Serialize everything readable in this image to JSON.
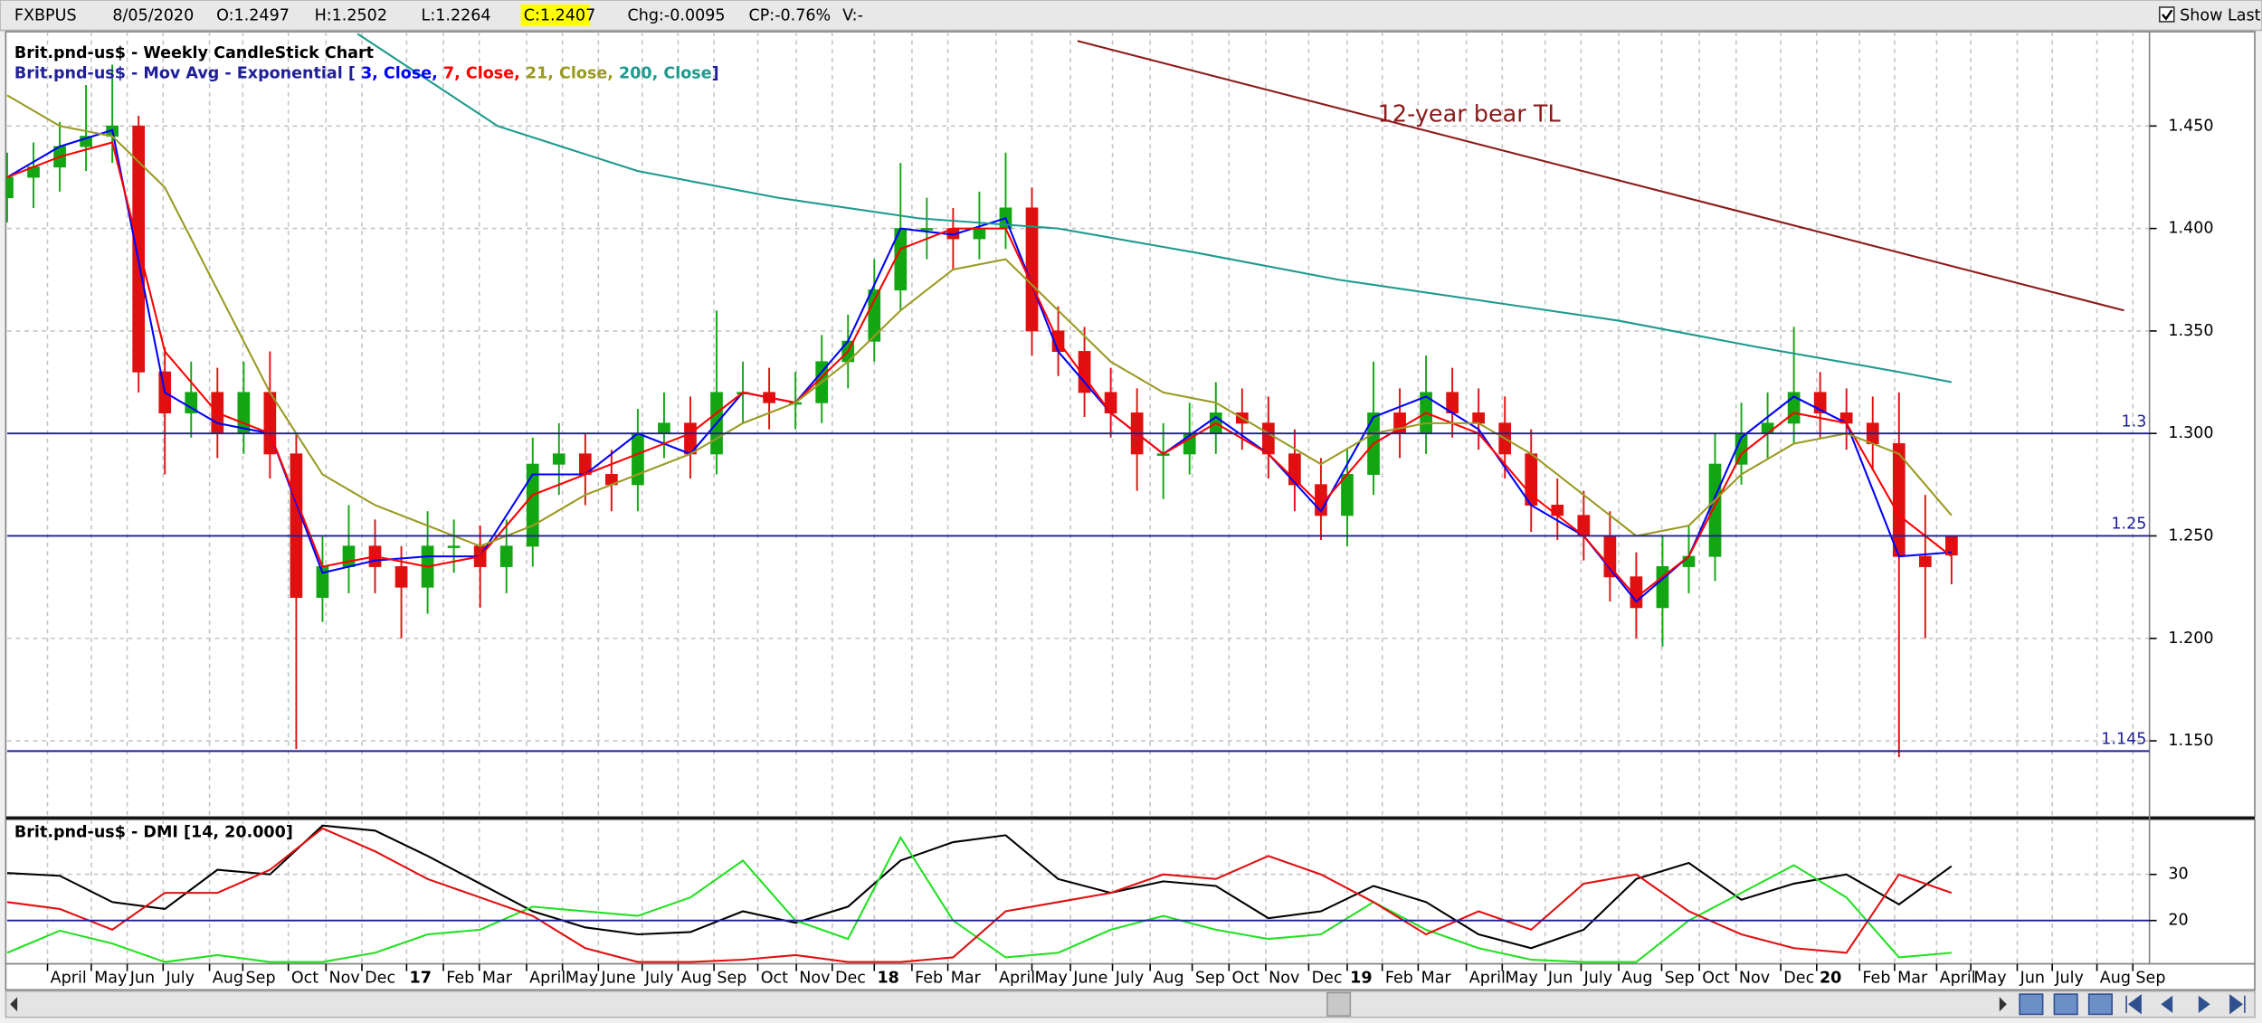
{
  "toolbar": {
    "symbol": "FXBPUS",
    "date": "8/05/2020",
    "open": "O:1.2497",
    "high": "H:1.2502",
    "low": "L:1.2264",
    "close": "C:1.2407",
    "change": "Chg:-0.0095",
    "change_percent": "CP:-0.76%",
    "volume": "V:-",
    "show_last": "Show Last"
  },
  "chart_data": [
    {
      "type": "candlestick",
      "title": "Brit.pnd-us$ - Weekly CandleStick Chart",
      "legend_prefix": "Brit.pnd-us$ - Mov Avg - Exponential [",
      "legend_suffix": "]",
      "annotation": "12-year bear TL",
      "up_color": "#13a613",
      "down_color": "#e01010",
      "x": [
        0,
        3,
        6,
        9,
        12,
        15,
        18,
        21,
        24,
        27,
        30,
        33,
        36,
        39,
        42,
        45,
        48,
        51,
        54,
        57,
        60,
        63,
        66,
        69,
        72,
        75,
        78,
        81,
        84,
        87,
        90,
        93,
        96,
        99,
        102,
        105,
        108,
        111,
        114,
        117,
        120,
        123,
        126,
        129,
        132,
        135,
        138,
        141,
        144,
        147,
        150,
        153,
        156,
        159,
        162,
        165,
        168,
        171,
        174,
        177,
        180,
        183,
        186,
        189,
        192,
        195,
        198,
        201,
        204,
        207,
        210,
        213,
        216,
        219,
        222
      ],
      "open": [
        1.415,
        1.425,
        1.43,
        1.44,
        1.445,
        1.45,
        1.33,
        1.31,
        1.32,
        1.3,
        1.32,
        1.29,
        1.22,
        1.235,
        1.245,
        1.235,
        1.225,
        1.245,
        1.245,
        1.235,
        1.245,
        1.285,
        1.29,
        1.28,
        1.275,
        1.3,
        1.305,
        1.29,
        1.32,
        1.32,
        1.315,
        1.315,
        1.335,
        1.345,
        1.37,
        1.4,
        1.4,
        1.395,
        1.4,
        1.41,
        1.35,
        1.34,
        1.32,
        1.31,
        1.29,
        1.29,
        1.3,
        1.31,
        1.305,
        1.29,
        1.275,
        1.26,
        1.28,
        1.31,
        1.3,
        1.32,
        1.31,
        1.305,
        1.29,
        1.265,
        1.26,
        1.25,
        1.23,
        1.215,
        1.235,
        1.24,
        1.285,
        1.3,
        1.305,
        1.32,
        1.31,
        1.305,
        1.295,
        1.24,
        1.2497
      ],
      "high": [
        1.437,
        1.442,
        1.452,
        1.47,
        1.48,
        1.455,
        1.342,
        1.335,
        1.332,
        1.335,
        1.34,
        1.3,
        1.25,
        1.265,
        1.258,
        1.245,
        1.262,
        1.258,
        1.255,
        1.258,
        1.298,
        1.305,
        1.3,
        1.292,
        1.312,
        1.32,
        1.318,
        1.36,
        1.335,
        1.332,
        1.33,
        1.348,
        1.358,
        1.385,
        1.432,
        1.415,
        1.41,
        1.418,
        1.437,
        1.42,
        1.362,
        1.352,
        1.332,
        1.322,
        1.305,
        1.315,
        1.325,
        1.322,
        1.318,
        1.302,
        1.288,
        1.292,
        1.335,
        1.322,
        1.338,
        1.332,
        1.322,
        1.318,
        1.302,
        1.278,
        1.272,
        1.262,
        1.242,
        1.25,
        1.255,
        1.3,
        1.315,
        1.32,
        1.352,
        1.33,
        1.322,
        1.318,
        1.32,
        1.27,
        1.2502
      ],
      "low": [
        1.403,
        1.41,
        1.418,
        1.428,
        1.432,
        1.32,
        1.28,
        1.298,
        1.288,
        1.29,
        1.278,
        1.146,
        1.208,
        1.222,
        1.222,
        1.2,
        1.212,
        1.232,
        1.215,
        1.222,
        1.235,
        1.27,
        1.265,
        1.262,
        1.262,
        1.288,
        1.278,
        1.28,
        1.305,
        1.302,
        1.302,
        1.305,
        1.322,
        1.335,
        1.36,
        1.385,
        1.38,
        1.385,
        1.39,
        1.338,
        1.328,
        1.308,
        1.298,
        1.272,
        1.268,
        1.28,
        1.29,
        1.292,
        1.278,
        1.262,
        1.248,
        1.245,
        1.27,
        1.288,
        1.29,
        1.298,
        1.292,
        1.278,
        1.252,
        1.248,
        1.238,
        1.218,
        1.2,
        1.196,
        1.222,
        1.228,
        1.275,
        1.288,
        1.295,
        1.298,
        1.292,
        1.282,
        1.142,
        1.2,
        1.2264
      ],
      "close": [
        1.425,
        1.43,
        1.44,
        1.445,
        1.45,
        1.33,
        1.31,
        1.32,
        1.3,
        1.32,
        1.29,
        1.22,
        1.235,
        1.245,
        1.235,
        1.225,
        1.245,
        1.245,
        1.235,
        1.245,
        1.285,
        1.29,
        1.28,
        1.275,
        1.3,
        1.305,
        1.29,
        1.32,
        1.32,
        1.315,
        1.315,
        1.335,
        1.345,
        1.37,
        1.4,
        1.4,
        1.395,
        1.4,
        1.41,
        1.35,
        1.34,
        1.32,
        1.31,
        1.29,
        1.29,
        1.3,
        1.31,
        1.305,
        1.29,
        1.275,
        1.26,
        1.28,
        1.31,
        1.3,
        1.32,
        1.31,
        1.305,
        1.29,
        1.265,
        1.26,
        1.25,
        1.23,
        1.215,
        1.235,
        1.24,
        1.285,
        1.3,
        1.305,
        1.32,
        1.31,
        1.305,
        1.295,
        1.24,
        1.235,
        1.2407
      ],
      "series": [
        {
          "name": "3, Close,",
          "color": "#0000ff",
          "x": [
            0,
            6,
            12,
            18,
            24,
            30,
            36,
            42,
            48,
            54,
            60,
            66,
            72,
            78,
            84,
            90,
            96,
            102,
            108,
            114,
            120,
            126,
            132,
            138,
            144,
            150,
            156,
            162,
            168,
            174,
            180,
            186,
            192,
            198,
            204,
            210,
            216,
            222
          ],
          "values": [
            1.425,
            1.44,
            1.448,
            1.32,
            1.305,
            1.3,
            1.232,
            1.238,
            1.24,
            1.24,
            1.28,
            1.28,
            1.3,
            1.29,
            1.32,
            1.315,
            1.345,
            1.4,
            1.397,
            1.405,
            1.34,
            1.31,
            1.29,
            1.308,
            1.29,
            1.262,
            1.308,
            1.318,
            1.302,
            1.265,
            1.25,
            1.218,
            1.24,
            1.298,
            1.318,
            1.305,
            1.24,
            1.242
          ]
        },
        {
          "name": "7, Close,",
          "color": "#ff0000",
          "x": [
            0,
            6,
            12,
            18,
            24,
            30,
            36,
            42,
            48,
            54,
            60,
            66,
            72,
            78,
            84,
            90,
            96,
            102,
            108,
            114,
            120,
            126,
            132,
            138,
            144,
            150,
            156,
            162,
            168,
            174,
            180,
            186,
            192,
            198,
            204,
            210,
            216,
            222
          ],
          "values": [
            1.425,
            1.435,
            1.442,
            1.34,
            1.31,
            1.3,
            1.235,
            1.24,
            1.235,
            1.24,
            1.27,
            1.28,
            1.29,
            1.3,
            1.32,
            1.315,
            1.34,
            1.39,
            1.4,
            1.4,
            1.345,
            1.31,
            1.29,
            1.305,
            1.29,
            1.265,
            1.295,
            1.31,
            1.3,
            1.27,
            1.25,
            1.22,
            1.24,
            1.29,
            1.31,
            1.305,
            1.26,
            1.24
          ]
        },
        {
          "name": "21, Close,",
          "color": "#9a9a22",
          "x": [
            0,
            6,
            12,
            18,
            24,
            30,
            36,
            42,
            48,
            54,
            60,
            66,
            72,
            78,
            84,
            90,
            96,
            102,
            108,
            114,
            120,
            126,
            132,
            138,
            144,
            150,
            156,
            162,
            168,
            174,
            180,
            186,
            192,
            198,
            204,
            210,
            216,
            222
          ],
          "values": [
            1.465,
            1.45,
            1.445,
            1.42,
            1.37,
            1.32,
            1.28,
            1.265,
            1.255,
            1.245,
            1.255,
            1.27,
            1.28,
            1.29,
            1.305,
            1.315,
            1.335,
            1.36,
            1.38,
            1.385,
            1.36,
            1.335,
            1.32,
            1.315,
            1.3,
            1.285,
            1.3,
            1.305,
            1.305,
            1.29,
            1.27,
            1.25,
            1.255,
            1.28,
            1.295,
            1.3,
            1.29,
            1.26
          ]
        },
        {
          "name": "200, Close",
          "color": "#1c9a8c",
          "x": [
            40,
            56,
            72,
            88,
            104,
            120,
            136,
            152,
            168,
            184,
            200,
            216,
            222
          ],
          "values": [
            1.495,
            1.45,
            1.428,
            1.415,
            1.405,
            1.4,
            1.388,
            1.375,
            1.365,
            1.355,
            1.342,
            1.33,
            1.325
          ]
        }
      ],
      "hlines": [
        1.3,
        1.25,
        1.145
      ],
      "hline_color": "#1f1f9a",
      "trendline": {
        "x": [
          122.2,
          241.7
        ],
        "values": [
          1.4915,
          1.36
        ],
        "color": "#8b1a1a"
      },
      "xlim": [
        0,
        244.6
      ],
      "ylim": [
        1.113,
        1.496
      ],
      "yticks": [
        {
          "value": 1.45,
          "label": "1.450"
        },
        {
          "value": 1.4,
          "label": "1.400"
        },
        {
          "value": 1.35,
          "label": "1.350"
        },
        {
          "value": 1.3,
          "label": "1.300"
        },
        {
          "value": 1.25,
          "label": "1.250"
        },
        {
          "value": 1.2,
          "label": "1.200"
        },
        {
          "value": 1.15,
          "label": "1.150"
        }
      ],
      "xticks": [
        {
          "value": 4.6,
          "label": "April"
        },
        {
          "value": 9.6,
          "label": "May"
        },
        {
          "value": 13.7,
          "label": "Jun"
        },
        {
          "value": 17.8,
          "label": "July"
        },
        {
          "value": 23.1,
          "label": "Aug"
        },
        {
          "value": 26.9,
          "label": "Sep"
        },
        {
          "value": 32.1,
          "label": "Oct"
        },
        {
          "value": 36.4,
          "label": "Nov"
        },
        {
          "value": 40.5,
          "label": "Dec"
        },
        {
          "value": 45.6,
          "label": "17"
        },
        {
          "value": 49.8,
          "label": "Feb"
        },
        {
          "value": 53.9,
          "label": "Mar"
        },
        {
          "value": 59.3,
          "label": "April"
        },
        {
          "value": 63.4,
          "label": "May"
        },
        {
          "value": 67.5,
          "label": "June"
        },
        {
          "value": 72.5,
          "label": "July"
        },
        {
          "value": 76.6,
          "label": "Aug"
        },
        {
          "value": 80.7,
          "label": "Sep"
        },
        {
          "value": 85.7,
          "label": "Oct"
        },
        {
          "value": 90.1,
          "label": "Nov"
        },
        {
          "value": 94.2,
          "label": "Dec"
        },
        {
          "value": 99.0,
          "label": "18"
        },
        {
          "value": 103.3,
          "label": "Feb"
        },
        {
          "value": 107.4,
          "label": "Mar"
        },
        {
          "value": 112.9,
          "label": "April"
        },
        {
          "value": 117.0,
          "label": "May"
        },
        {
          "value": 121.4,
          "label": "June"
        },
        {
          "value": 126.2,
          "label": "July"
        },
        {
          "value": 130.5,
          "label": "Aug"
        },
        {
          "value": 135.3,
          "label": "Sep"
        },
        {
          "value": 139.5,
          "label": "Oct"
        },
        {
          "value": 143.7,
          "label": "Nov"
        },
        {
          "value": 148.6,
          "label": "Dec"
        },
        {
          "value": 153.0,
          "label": "19"
        },
        {
          "value": 157.0,
          "label": "Feb"
        },
        {
          "value": 161.1,
          "label": "Mar"
        },
        {
          "value": 166.6,
          "label": "April"
        },
        {
          "value": 170.7,
          "label": "May"
        },
        {
          "value": 175.6,
          "label": "Jun"
        },
        {
          "value": 179.7,
          "label": "July"
        },
        {
          "value": 184.0,
          "label": "Aug"
        },
        {
          "value": 188.9,
          "label": "Sep"
        },
        {
          "value": 193.2,
          "label": "Oct"
        },
        {
          "value": 197.4,
          "label": "Nov"
        },
        {
          "value": 202.5,
          "label": "Dec"
        },
        {
          "value": 206.6,
          "label": "20"
        },
        {
          "value": 211.5,
          "label": "Feb"
        },
        {
          "value": 215.5,
          "label": "Mar"
        },
        {
          "value": 220.3,
          "label": "April"
        },
        {
          "value": 224.2,
          "label": "May"
        },
        {
          "value": 229.5,
          "label": "Jun"
        },
        {
          "value": 233.5,
          "label": "July"
        },
        {
          "value": 238.6,
          "label": "Aug"
        },
        {
          "value": 242.7,
          "label": "Sep"
        }
      ],
      "grid": true
    },
    {
      "type": "line",
      "title": "Brit.pnd-us$ - DMI [14, 20.000]",
      "x": [
        0,
        6,
        12,
        18,
        24,
        30,
        36,
        42,
        48,
        54,
        60,
        66,
        72,
        78,
        84,
        90,
        96,
        102,
        108,
        114,
        120,
        126,
        132,
        138,
        144,
        150,
        156,
        162,
        168,
        174,
        180,
        186,
        192,
        198,
        204,
        210,
        216,
        222
      ],
      "series": [
        {
          "color": "#000000",
          "values": [
            30.3,
            29.7,
            24,
            22.5,
            31,
            30,
            40.6,
            39.5,
            34,
            28,
            22,
            18.5,
            17,
            17.5,
            22,
            19.5,
            23,
            33,
            37,
            38.5,
            29,
            26,
            28.5,
            27.5,
            20.5,
            22,
            27.5,
            24,
            17,
            14,
            18,
            29,
            32.5,
            24.5,
            28,
            30,
            23.5,
            31.8
          ]
        },
        {
          "color": "#22e022",
          "values": [
            13,
            17.8,
            15,
            11,
            12.5,
            11,
            11,
            13,
            17,
            18,
            23,
            22,
            21,
            25,
            33,
            20,
            16,
            38,
            20,
            12,
            13,
            18,
            21,
            18,
            16,
            17,
            24,
            18,
            14,
            11.5,
            11,
            11,
            20,
            26,
            32,
            25,
            12,
            13
          ]
        },
        {
          "color": "#e01010",
          "values": [
            24,
            22.5,
            18,
            26,
            26,
            31,
            40,
            35,
            29,
            25,
            21,
            14,
            11,
            11,
            11.5,
            12.5,
            11,
            11,
            12,
            22,
            24,
            26,
            30,
            29,
            34,
            30,
            24,
            17,
            22,
            18,
            28,
            30,
            22,
            17,
            14,
            13,
            30,
            26
          ]
        }
      ],
      "hlines": [
        20
      ],
      "hline_color": "#1f1f9a",
      "xlim": [
        0,
        244.6
      ],
      "ylim": [
        10.6,
        41.9
      ],
      "yticks": [
        30,
        20
      ],
      "grid": true
    }
  ]
}
